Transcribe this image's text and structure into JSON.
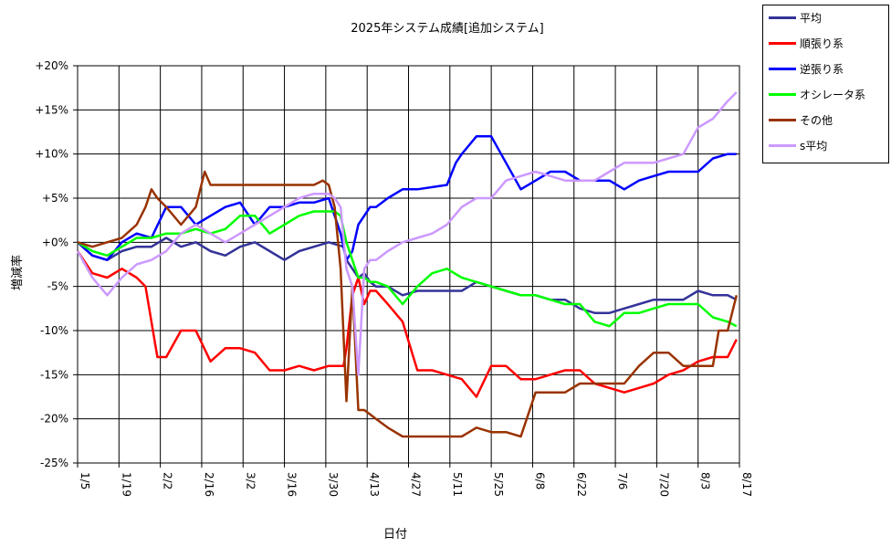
{
  "chart_data": {
    "type": "line",
    "title": "2025年システム成績[追加システム]",
    "xlabel": "日付",
    "ylabel": "増減率",
    "ylim": [
      -25,
      20
    ],
    "yticks": [
      20,
      15,
      10,
      5,
      0,
      -5,
      -10,
      -15,
      -20,
      -25
    ],
    "ytick_labels": [
      "+20%",
      "+15%",
      "+10%",
      "+5%",
      "+0%",
      "-5%",
      "-10%",
      "-15%",
      "-20%",
      "-25%"
    ],
    "xticks": [
      "1/5",
      "1/19",
      "2/2",
      "2/16",
      "3/2",
      "3/16",
      "3/30",
      "4/13",
      "4/27",
      "5/11",
      "5/25",
      "6/8",
      "6/22",
      "7/6",
      "7/20",
      "8/3",
      "8/17"
    ],
    "x_range_days": [
      5,
      229
    ],
    "grid": true,
    "legend_position": "top-right",
    "series": [
      {
        "name": "平均",
        "color": "#333399",
        "x": [
          5,
          10,
          15,
          20,
          25,
          30,
          35,
          40,
          45,
          50,
          55,
          60,
          65,
          70,
          75,
          80,
          85,
          90,
          95,
          96,
          98,
          100,
          102,
          104,
          106,
          110,
          115,
          120,
          130,
          135,
          140,
          150,
          155,
          160,
          165,
          170,
          175,
          180,
          185,
          190,
          195,
          200,
          205,
          210,
          215,
          220,
          225,
          228
        ],
        "values": [
          0,
          -1.5,
          -2,
          -1,
          -0.5,
          -0.5,
          0.5,
          -0.5,
          0,
          -1,
          -1.5,
          -0.5,
          0,
          -1,
          -2,
          -1,
          -0.5,
          0,
          -0.5,
          -2,
          -3,
          -4,
          -3.5,
          -4.5,
          -5,
          -5,
          -6,
          -5.5,
          -5.5,
          -5.5,
          -4.5,
          -5.5,
          -6,
          -6,
          -6.5,
          -6.5,
          -7.5,
          -8,
          -8,
          -7.5,
          -7,
          -6.5,
          -6.5,
          -6.5,
          -5.5,
          -6,
          -6,
          -6.5
        ]
      },
      {
        "name": "順張り系",
        "color": "#ff0000",
        "x": [
          5,
          10,
          15,
          20,
          25,
          28,
          32,
          35,
          40,
          45,
          50,
          55,
          60,
          65,
          70,
          75,
          80,
          85,
          90,
          95,
          96,
          98,
          100,
          102,
          104,
          106,
          110,
          115,
          120,
          125,
          130,
          135,
          140,
          145,
          150,
          155,
          160,
          165,
          170,
          175,
          180,
          185,
          190,
          195,
          200,
          205,
          210,
          215,
          220,
          225,
          228
        ],
        "values": [
          -1,
          -3.5,
          -4,
          -3,
          -4,
          -5,
          -13,
          -13,
          -10,
          -10,
          -13.5,
          -12,
          -12,
          -12.5,
          -14.5,
          -14.5,
          -14,
          -14.5,
          -14,
          -14,
          -12,
          -6,
          -4,
          -7,
          -5.5,
          -5.5,
          -7,
          -9,
          -14.5,
          -14.5,
          -15,
          -15.5,
          -17.5,
          -14,
          -14,
          -15.5,
          -15.5,
          -15,
          -14.5,
          -14.5,
          -16,
          -16.5,
          -17,
          -16.5,
          -16,
          -15,
          -14.5,
          -13.5,
          -13,
          -13,
          -11
        ]
      },
      {
        "name": "逆張り系",
        "color": "#0000ff",
        "x": [
          5,
          10,
          15,
          20,
          25,
          30,
          35,
          40,
          45,
          50,
          55,
          60,
          65,
          70,
          75,
          80,
          85,
          90,
          92,
          94,
          96,
          98,
          100,
          102,
          104,
          106,
          110,
          115,
          120,
          130,
          133,
          135,
          140,
          145,
          150,
          155,
          160,
          165,
          170,
          175,
          180,
          185,
          190,
          195,
          200,
          205,
          210,
          215,
          220,
          225,
          228
        ],
        "values": [
          0,
          -1.5,
          -2,
          0,
          1,
          0.5,
          4,
          4,
          2,
          3,
          4,
          4.5,
          2,
          4,
          4,
          4.5,
          4.5,
          5,
          3,
          1,
          -2,
          -1,
          2,
          3,
          4,
          4,
          5,
          6,
          6,
          6.5,
          9,
          10,
          12,
          12,
          9,
          6,
          7,
          8,
          8,
          7,
          7,
          7,
          6,
          7,
          7.5,
          8,
          8,
          8,
          9.5,
          10,
          10
        ]
      },
      {
        "name": "オシレータ系",
        "color": "#00ff00",
        "x": [
          5,
          10,
          15,
          20,
          25,
          30,
          35,
          40,
          45,
          50,
          55,
          60,
          65,
          70,
          75,
          80,
          85,
          90,
          92,
          94,
          96,
          98,
          100,
          102,
          104,
          106,
          110,
          115,
          120,
          125,
          130,
          135,
          140,
          145,
          150,
          155,
          160,
          165,
          170,
          175,
          180,
          185,
          190,
          195,
          200,
          205,
          210,
          215,
          220,
          225,
          228
        ],
        "values": [
          0,
          -1,
          -1.5,
          -0.5,
          0.5,
          0.5,
          1,
          1,
          1.5,
          1,
          1.5,
          3,
          3,
          1,
          2,
          3,
          3.5,
          3.5,
          3.5,
          3,
          0,
          -2,
          -4,
          -4,
          -4.5,
          -4.5,
          -5,
          -7,
          -5,
          -3.5,
          -3,
          -4,
          -4.5,
          -5,
          -5.5,
          -6,
          -6,
          -6.5,
          -7,
          -7,
          -9,
          -9.5,
          -8,
          -8,
          -7.5,
          -7,
          -7,
          -7,
          -8.5,
          -9,
          -9.5
        ]
      },
      {
        "name": "その他",
        "color": "#993300",
        "x": [
          5,
          10,
          15,
          20,
          25,
          28,
          30,
          32,
          35,
          40,
          45,
          48,
          50,
          55,
          60,
          65,
          70,
          75,
          80,
          85,
          88,
          90,
          92,
          94,
          96,
          98,
          100,
          102,
          104,
          106,
          110,
          115,
          120,
          125,
          130,
          135,
          140,
          145,
          150,
          155,
          160,
          165,
          170,
          175,
          180,
          185,
          190,
          195,
          200,
          205,
          210,
          215,
          220,
          222,
          225,
          228
        ],
        "values": [
          0,
          -0.5,
          0,
          0.5,
          2,
          4,
          6,
          5,
          4,
          2,
          4,
          8,
          6.5,
          6.5,
          6.5,
          6.5,
          6.5,
          6.5,
          6.5,
          6.5,
          7,
          6.5,
          4,
          -3,
          -18,
          -5,
          -19,
          -19,
          -19.5,
          -20,
          -21,
          -22,
          -22,
          -22,
          -22,
          -22,
          -21,
          -21.5,
          -21.5,
          -22,
          -17,
          -17,
          -17,
          -16,
          -16,
          -16,
          -16,
          -14,
          -12.5,
          -12.5,
          -14,
          -14,
          -14,
          -10,
          -10,
          -6
        ]
      },
      {
        "name": "s平均",
        "color": "#cc99ff",
        "x": [
          5,
          10,
          15,
          20,
          25,
          30,
          35,
          40,
          45,
          50,
          55,
          60,
          65,
          70,
          75,
          80,
          85,
          90,
          92,
          94,
          96,
          98,
          100,
          102,
          104,
          106,
          110,
          115,
          120,
          125,
          130,
          135,
          140,
          145,
          150,
          155,
          160,
          165,
          170,
          175,
          180,
          185,
          190,
          195,
          200,
          205,
          210,
          215,
          220,
          225,
          228
        ],
        "values": [
          -1,
          -4,
          -6,
          -4,
          -2.5,
          -2,
          -1,
          1,
          2,
          1,
          0,
          1,
          2,
          3,
          4,
          5,
          5.5,
          5.5,
          5,
          4,
          -3,
          -5,
          -15,
          -3,
          -2,
          -2,
          -1,
          0,
          0.5,
          1,
          2,
          4,
          5,
          5,
          7,
          7.5,
          8,
          7.5,
          7,
          7,
          7,
          8,
          9,
          9,
          9,
          9.5,
          10,
          13,
          14,
          16,
          17
        ]
      }
    ]
  }
}
